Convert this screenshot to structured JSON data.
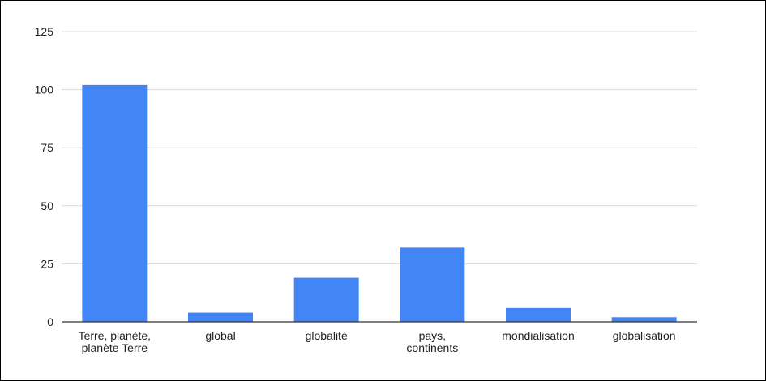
{
  "chart_data": {
    "type": "bar",
    "title": "",
    "xlabel": "",
    "ylabel": "",
    "categories": [
      [
        "Terre, planète,",
        "planète Terre"
      ],
      [
        "global"
      ],
      [
        "globalité"
      ],
      [
        "pays,",
        "continents"
      ],
      [
        "mondialisation"
      ],
      [
        "globalisation"
      ]
    ],
    "values": [
      102,
      4,
      19,
      32,
      6,
      2
    ],
    "ylim": [
      0,
      125
    ],
    "yticks": [
      "0",
      "25",
      "50",
      "75",
      "100",
      "125"
    ],
    "grid": true,
    "legend": "none",
    "colors": {
      "bar": "#4285f4",
      "grid": "#d9d9d9",
      "axis": "#333333"
    }
  }
}
